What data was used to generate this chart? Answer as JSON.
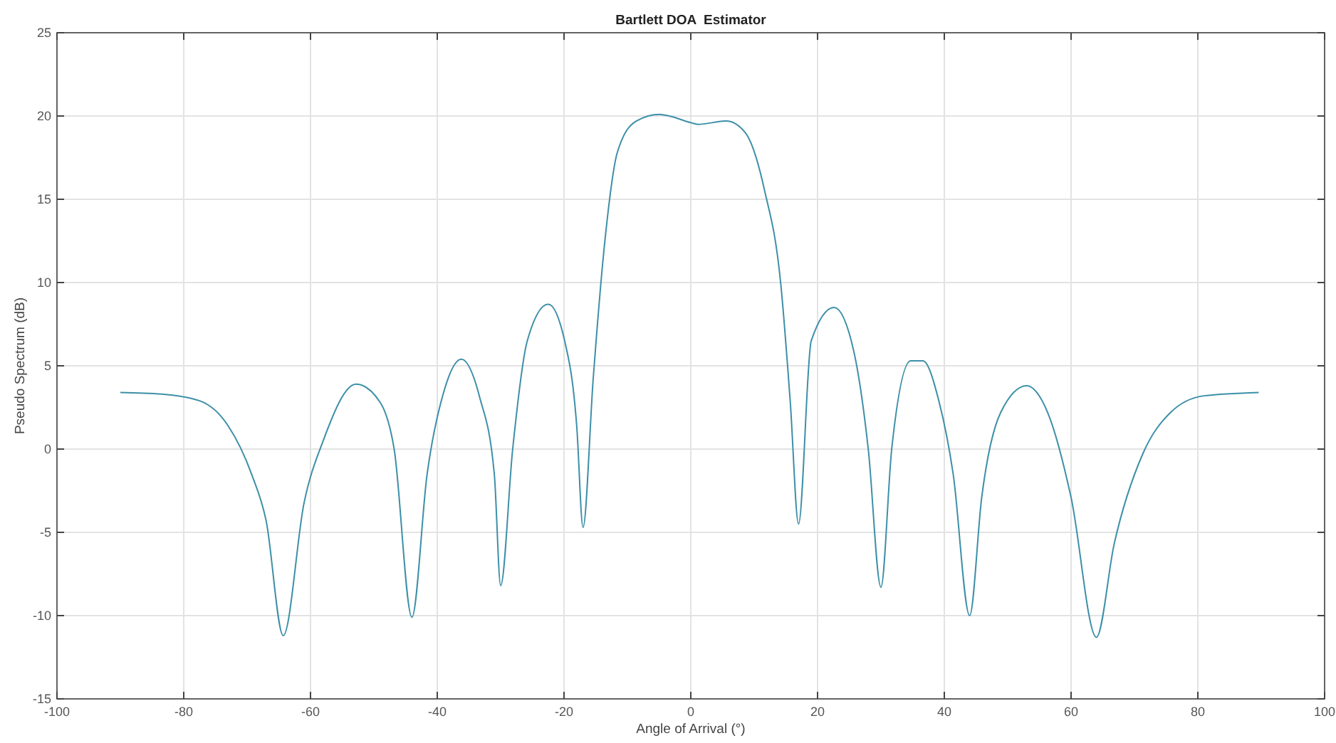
{
  "chart_data": {
    "type": "line",
    "title": "Bartlett DOA  Estimator",
    "xlabel": "Angle of Arrival (°)",
    "ylabel": "Pseudo Spectrum (dB)",
    "xlim": [
      -100,
      100
    ],
    "xticks": [
      -100,
      -80,
      -60,
      -40,
      -20,
      0,
      20,
      40,
      60,
      80,
      100
    ],
    "ylim": [
      -15,
      25
    ],
    "yticks": [
      -15,
      -10,
      -5,
      0,
      5,
      10,
      15,
      20,
      25
    ],
    "grid": true,
    "marker": "none",
    "line_style": "solid",
    "series": [
      {
        "color": "#3d8fa8",
        "x": [
          -90,
          -83.5,
          -77.5,
          -73,
          -69.3,
          -67,
          -64.3,
          -61,
          -58,
          -52.8,
          -49,
          -46.8,
          -44,
          -41.6,
          -39,
          -36.2,
          -33.3,
          -31,
          -30,
          -28.1,
          -25.8,
          -22.5,
          -19.9,
          -18,
          -17,
          -15.4,
          -13.5,
          -11.6,
          -8.6,
          -4.9,
          -3.4,
          0,
          1.1,
          5.6,
          8.6,
          11.6,
          14.2,
          15.7,
          17,
          19,
          22.6,
          25.7,
          28,
          30,
          31.7,
          34.7,
          36.6,
          39.2,
          41.4,
          44,
          45.9,
          48.9,
          53,
          56.3,
          60,
          64,
          66.8,
          71.3,
          75.7,
          81,
          89.6
        ],
        "values": [
          3.4,
          3.3,
          2.9,
          1.4,
          -1.5,
          -4.3,
          -11.2,
          -3.2,
          0.5,
          3.9,
          2.8,
          0,
          -10.1,
          -1.5,
          3.4,
          5.4,
          3.1,
          -1.5,
          -8.2,
          0,
          6.5,
          8.7,
          6.5,
          1.4,
          -4.7,
          4.2,
          12.7,
          17.8,
          19.7,
          20.1,
          20,
          19.6,
          19.5,
          19.7,
          19,
          15.6,
          9.9,
          2.8,
          -4.5,
          6.5,
          8.5,
          5.9,
          0,
          -8.3,
          0,
          5.3,
          5.3,
          2.8,
          -1.5,
          -10,
          -2.9,
          2.2,
          3.8,
          2.2,
          -2.9,
          -11.3,
          -5.7,
          -0.3,
          2.2,
          3.2,
          3.4
        ]
      }
    ]
  }
}
